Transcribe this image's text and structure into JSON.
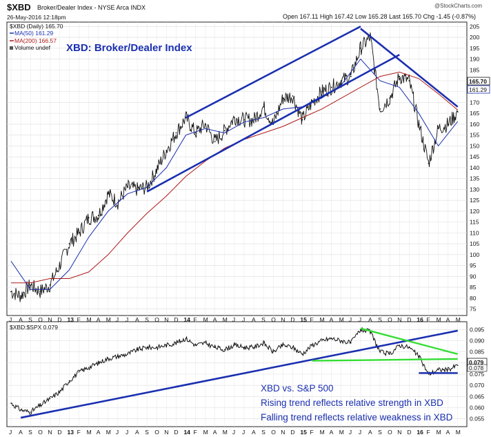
{
  "header": {
    "symbol": "$XBD",
    "name": "Broker/Dealer Index - NYSE Arca INDX",
    "date": "26-May-2016 12:18pm",
    "ohlc": "Open 167.11  High 167.42  Low 165.28  Last 165.70  Chg -1.45 (-0.87%)",
    "change_color": "#cc0000",
    "watermark": "@StockCharts.com"
  },
  "legend": {
    "main": "$XBD (Daily) 165.70",
    "ma50": "MA(50) 161.29",
    "ma200": "MA(200) 166.57",
    "volume": "Volume undef",
    "ratio": "$XBD:$SPX 0.079"
  },
  "chart_data": [
    {
      "type": "line",
      "title": "XBD: Broker/Dealer Index",
      "ylim": [
        72,
        207
      ],
      "y_ticks": [
        75,
        80,
        85,
        90,
        95,
        100,
        105,
        110,
        115,
        120,
        125,
        130,
        135,
        140,
        145,
        150,
        155,
        160,
        165,
        170,
        175,
        180,
        185,
        190,
        195,
        200,
        205
      ],
      "last_value_labels": [
        "165.70",
        "161.29"
      ],
      "colors": {
        "price": "#111111",
        "ma50": "#1a2fb0",
        "ma200": "#b01818",
        "trend": "#1a2fb0"
      },
      "series": [
        {
          "name": "$XBD (Daily)",
          "x": [
            "2012-07",
            "2012-08",
            "2012-09",
            "2012-10",
            "2012-11",
            "2012-12",
            "2013-01",
            "2013-02",
            "2013-03",
            "2013-04",
            "2013-05",
            "2013-06",
            "2013-07",
            "2013-08",
            "2013-09",
            "2013-10",
            "2013-11",
            "2013-12",
            "2014-01",
            "2014-02",
            "2014-03",
            "2014-04",
            "2014-05",
            "2014-06",
            "2014-07",
            "2014-08",
            "2014-09",
            "2014-10",
            "2014-11",
            "2014-12",
            "2015-01",
            "2015-02",
            "2015-03",
            "2015-04",
            "2015-05",
            "2015-06",
            "2015-07",
            "2015-08",
            "2015-09",
            "2015-10",
            "2015-11",
            "2015-12",
            "2016-01",
            "2016-02",
            "2016-03",
            "2016-04",
            "2016-05"
          ],
          "values": [
            83,
            81,
            86,
            83,
            86,
            95,
            105,
            110,
            117,
            118,
            128,
            124,
            131,
            130,
            131,
            139,
            148,
            156,
            163,
            156,
            160,
            152,
            157,
            163,
            162,
            162,
            168,
            160,
            172,
            173,
            162,
            170,
            175,
            177,
            180,
            182,
            195,
            200,
            167,
            172,
            182,
            180,
            160,
            142,
            158,
            160,
            165.7
          ]
        },
        {
          "name": "MA(50)",
          "x": [
            "2012-07",
            "2012-09",
            "2012-11",
            "2013-01",
            "2013-03",
            "2013-05",
            "2013-07",
            "2013-09",
            "2013-11",
            "2014-01",
            "2014-03",
            "2014-05",
            "2014-07",
            "2014-09",
            "2014-11",
            "2015-01",
            "2015-03",
            "2015-05",
            "2015-07",
            "2015-09",
            "2015-11",
            "2016-01",
            "2016-03",
            "2016-05"
          ],
          "values": [
            97,
            84,
            84,
            93,
            108,
            120,
            128,
            131,
            140,
            155,
            158,
            156,
            161,
            163,
            167,
            168,
            172,
            178,
            190,
            180,
            177,
            165,
            150,
            161.29
          ]
        },
        {
          "name": "MA(200)",
          "x": [
            "2012-07",
            "2012-09",
            "2012-11",
            "2013-01",
            "2013-03",
            "2013-05",
            "2013-07",
            "2013-09",
            "2013-11",
            "2014-01",
            "2014-03",
            "2014-05",
            "2014-07",
            "2014-09",
            "2014-11",
            "2015-01",
            "2015-03",
            "2015-05",
            "2015-07",
            "2015-09",
            "2015-11",
            "2016-01",
            "2016-03",
            "2016-05"
          ],
          "values": [
            87,
            87,
            89,
            89,
            92,
            100,
            110,
            119,
            127,
            136,
            143,
            149,
            153,
            156,
            159,
            163,
            167,
            172,
            177,
            182,
            184,
            181,
            174,
            166.57
          ]
        },
        {
          "name": "Trendlines",
          "segments": [
            [
              "2013-09",
              129,
              "2015-11",
              192
            ],
            [
              "2014-01",
              163,
              "2015-07",
              205
            ],
            [
              "2015-07",
              204,
              "2016-05",
              168
            ]
          ]
        }
      ]
    },
    {
      "type": "line",
      "ylim": [
        0.0515,
        0.0985
      ],
      "y_ticks": [
        0.055,
        0.06,
        0.065,
        0.07,
        0.075,
        0.08,
        0.085,
        0.09,
        0.095
      ],
      "x_ticks": [
        "J",
        "A",
        "S",
        "O",
        "N",
        "D",
        "13",
        "F",
        "M",
        "A",
        "M",
        "J",
        "J",
        "A",
        "S",
        "O",
        "N",
        "D",
        "14",
        "F",
        "M",
        "A",
        "M",
        "J",
        "J",
        "A",
        "S",
        "O",
        "N",
        "D",
        "15",
        "F",
        "M",
        "A",
        "M",
        "J",
        "J",
        "A",
        "S",
        "O",
        "N",
        "D",
        "16",
        "F",
        "M",
        "A",
        "M"
      ],
      "last_value_labels": [
        "0.079",
        "0.078"
      ],
      "colors": {
        "ratio": "#111111",
        "trend": "#1a2fb0",
        "falling": "#33dd33"
      },
      "series": [
        {
          "name": "$XBD:$SPX",
          "x": [
            "2012-07",
            "2012-08",
            "2012-09",
            "2012-10",
            "2012-11",
            "2012-12",
            "2013-01",
            "2013-02",
            "2013-03",
            "2013-04",
            "2013-05",
            "2013-06",
            "2013-07",
            "2013-08",
            "2013-09",
            "2013-10",
            "2013-11",
            "2013-12",
            "2014-01",
            "2014-02",
            "2014-03",
            "2014-04",
            "2014-05",
            "2014-06",
            "2014-07",
            "2014-08",
            "2014-09",
            "2014-10",
            "2014-11",
            "2014-12",
            "2015-01",
            "2015-02",
            "2015-03",
            "2015-04",
            "2015-05",
            "2015-06",
            "2015-07",
            "2015-08",
            "2015-09",
            "2015-10",
            "2015-11",
            "2015-12",
            "2016-01",
            "2016-02",
            "2016-03",
            "2016-04",
            "2016-05"
          ],
          "values": [
            0.062,
            0.059,
            0.058,
            0.061,
            0.064,
            0.067,
            0.072,
            0.076,
            0.078,
            0.08,
            0.082,
            0.083,
            0.084,
            0.086,
            0.087,
            0.087,
            0.088,
            0.089,
            0.091,
            0.088,
            0.089,
            0.087,
            0.086,
            0.088,
            0.087,
            0.087,
            0.089,
            0.085,
            0.088,
            0.087,
            0.084,
            0.088,
            0.09,
            0.091,
            0.09,
            0.089,
            0.095,
            0.094,
            0.085,
            0.084,
            0.088,
            0.087,
            0.083,
            0.075,
            0.077,
            0.077,
            0.079
          ]
        },
        {
          "name": "Rising trend",
          "segments": [
            [
              "2012-08",
              0.0555,
              "2016-05",
              0.0945
            ]
          ]
        },
        {
          "name": "Falling / support trends",
          "segments": [
            [
              "2015-07",
              0.0955,
              "2016-05",
              0.084
            ],
            [
              "2015-02",
              0.081,
              "2016-05",
              0.0818
            ],
            [
              "2016-01",
              0.0755,
              "2016-05",
              0.0755
            ]
          ]
        }
      ],
      "annotations": [
        "XBD vs. S&P 500",
        "Rising trend reflects relative strength in XBD",
        "Falling trend reflects relative weakness in XBD"
      ]
    }
  ]
}
